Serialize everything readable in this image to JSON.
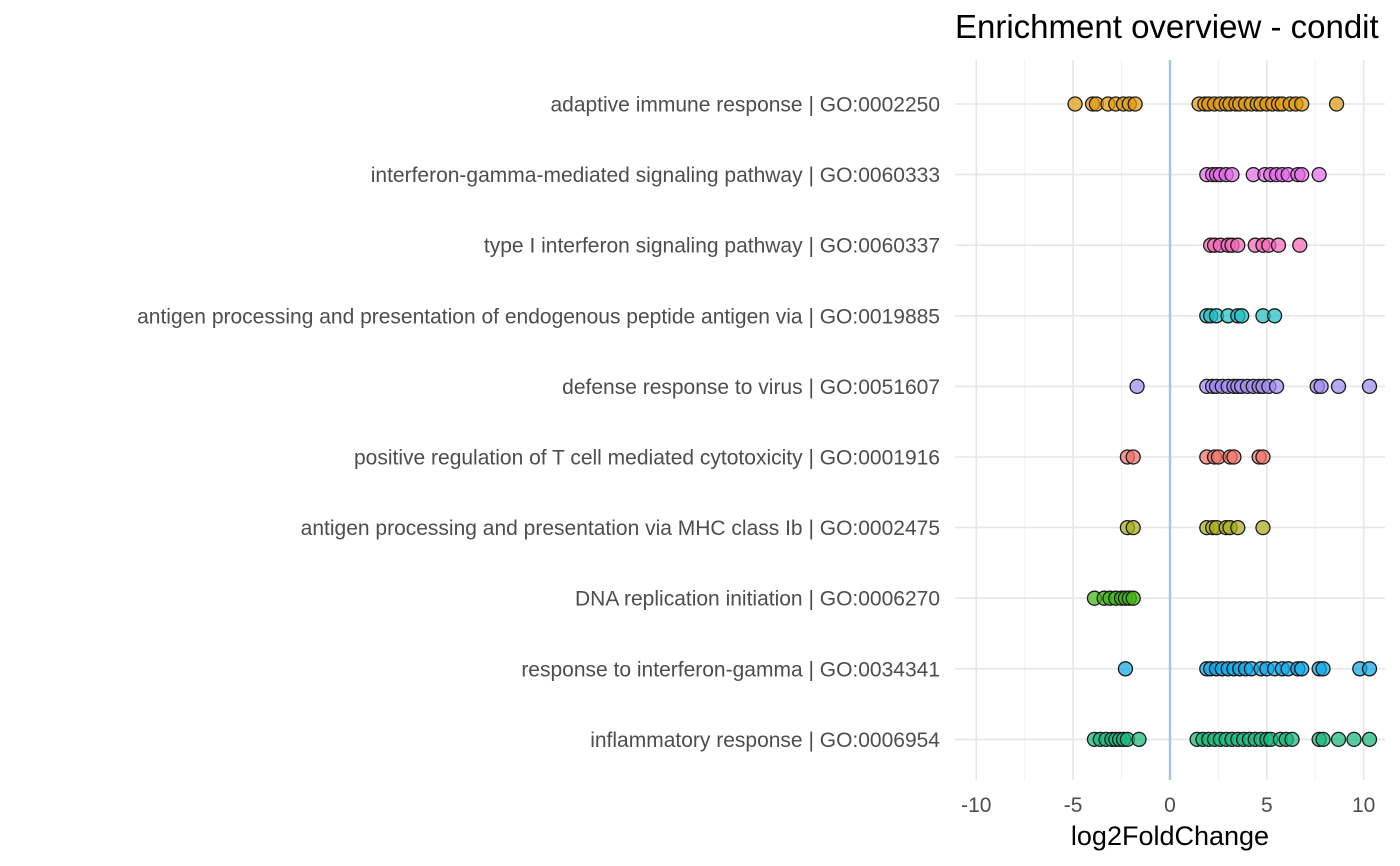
{
  "chart_data": {
    "type": "scatter",
    "title": "Enrichment overview - condit",
    "xlabel": "log2FoldChange",
    "ylabel": "",
    "xlim": [
      -11.1,
      11.1
    ],
    "xticks": [
      -10,
      -5,
      0,
      5,
      10
    ],
    "xtick_labels": [
      "-10",
      "-5",
      "0",
      "5",
      "10"
    ],
    "reference_line_x": 0,
    "reference_line_color": "#a6c4dc",
    "grid": true,
    "legend": "none",
    "marker_opacity": 0.72,
    "marker_edge_color": "#1a1a1a",
    "series": [
      {
        "name": "adaptive immune response | GO:0002250",
        "color": "#e09b0e",
        "x": [
          -4.9,
          -4.0,
          -3.8,
          -3.2,
          -2.8,
          -2.4,
          -2.1,
          -1.8,
          1.5,
          1.8,
          2.0,
          2.3,
          2.6,
          2.9,
          3.1,
          3.4,
          3.6,
          3.9,
          4.2,
          4.5,
          4.7,
          5.0,
          5.3,
          5.6,
          5.8,
          6.2,
          6.5,
          6.8,
          8.6
        ]
      },
      {
        "name": "interferon-gamma-mediated signaling pathway | GO:0060333",
        "color": "#e36ce7",
        "x": [
          1.9,
          2.2,
          2.4,
          2.6,
          2.9,
          3.2,
          4.3,
          4.9,
          5.2,
          5.5,
          5.8,
          6.1,
          6.6,
          6.8,
          7.7
        ]
      },
      {
        "name": "type I interferon signaling pathway | GO:0060337",
        "color": "#f36ab7",
        "x": [
          2.1,
          2.3,
          2.6,
          3.0,
          3.2,
          3.5,
          4.4,
          4.8,
          5.1,
          5.6,
          6.7
        ]
      },
      {
        "name": "antigen processing and presentation of endogenous peptide antigen via  | GO:0019885",
        "color": "#1fbfc4",
        "x": [
          1.9,
          2.1,
          2.4,
          3.0,
          3.5,
          3.7,
          4.8,
          5.4
        ]
      },
      {
        "name": "defense response to virus | GO:0051607",
        "color": "#9f8cf0",
        "x": [
          -1.7,
          1.9,
          2.2,
          2.4,
          2.7,
          3.0,
          3.3,
          3.5,
          3.7,
          4.0,
          4.3,
          4.6,
          4.8,
          5.1,
          5.5,
          7.6,
          7.8,
          8.7,
          10.3
        ]
      },
      {
        "name": "positive regulation of T cell mediated cytotoxicity | GO:0001916",
        "color": "#f0736a",
        "x": [
          -2.2,
          -1.9,
          1.9,
          2.3,
          2.5,
          3.1,
          3.3,
          4.6,
          4.8
        ]
      },
      {
        "name": "antigen processing and presentation via MHC class Ib | GO:0002475",
        "color": "#a9ad1c",
        "x": [
          -2.2,
          -1.9,
          1.9,
          2.2,
          2.4,
          2.9,
          3.1,
          3.5,
          4.8
        ]
      },
      {
        "name": "DNA replication initiation | GO:0006270",
        "color": "#3eb514",
        "x": [
          -3.9,
          -3.4,
          -3.1,
          -2.8,
          -2.5,
          -2.3,
          -2.1,
          -1.9
        ]
      },
      {
        "name": "response to interferon-gamma | GO:0034341",
        "color": "#10a7e8",
        "x": [
          -2.3,
          1.9,
          2.1,
          2.4,
          2.7,
          3.0,
          3.3,
          3.6,
          3.9,
          4.2,
          4.7,
          5.0,
          5.4,
          5.8,
          6.1,
          6.6,
          6.8,
          7.7,
          7.9,
          9.8,
          10.3
        ]
      },
      {
        "name": "inflammatory response | GO:0006954",
        "color": "#18b87c",
        "x": [
          -3.9,
          -3.6,
          -3.3,
          -3.0,
          -2.8,
          -2.6,
          -2.4,
          -2.2,
          -1.6,
          1.4,
          1.7,
          2.0,
          2.3,
          2.6,
          2.9,
          3.2,
          3.5,
          3.8,
          4.1,
          4.4,
          4.7,
          5.0,
          5.2,
          5.7,
          6.0,
          6.3,
          7.7,
          7.9,
          8.7,
          9.5,
          10.3
        ]
      }
    ]
  }
}
